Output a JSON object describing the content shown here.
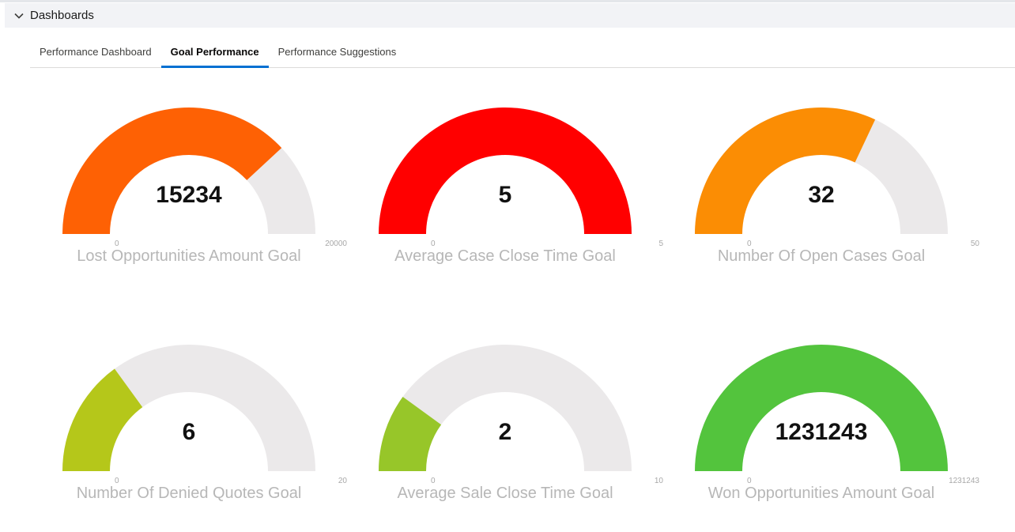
{
  "section": {
    "title": "Dashboards",
    "collapse_icon": "chevron-down-icon"
  },
  "tabs": [
    {
      "label": "Performance Dashboard",
      "active": false
    },
    {
      "label": "Goal Performance",
      "active": true
    },
    {
      "label": "Performance Suggestions",
      "active": false
    }
  ],
  "gauges": [
    {
      "title": "Lost Opportunities Amount Goal",
      "value": 15234,
      "value_label": "15234",
      "min": 0,
      "min_label": "0",
      "max": 20000,
      "max_label": "20000",
      "color": "#fe6104"
    },
    {
      "title": "Average Case Close Time Goal",
      "value": 5,
      "value_label": "5",
      "min": 0,
      "min_label": "0",
      "max": 5,
      "max_label": "5",
      "color": "#ff0000"
    },
    {
      "title": "Number Of Open Cases Goal",
      "value": 32,
      "value_label": "32",
      "min": 0,
      "min_label": "0",
      "max": 50,
      "max_label": "50",
      "color": "#fb8d04"
    },
    {
      "title": "Number Of Denied Quotes Goal",
      "value": 6,
      "value_label": "6",
      "min": 0,
      "min_label": "0",
      "max": 20,
      "max_label": "20",
      "color": "#b5c71a"
    },
    {
      "title": "Average Sale Close Time Goal",
      "value": 2,
      "value_label": "2",
      "min": 0,
      "min_label": "0",
      "max": 10,
      "max_label": "10",
      "color": "#97c629"
    },
    {
      "title": "Won Opportunities Amount Goal",
      "value": 1231243,
      "value_label": "1231243",
      "min": 0,
      "min_label": "0",
      "max": 1231243,
      "max_label": "1231243",
      "color": "#53c43d"
    }
  ],
  "track_color": "#ebe9ea"
}
